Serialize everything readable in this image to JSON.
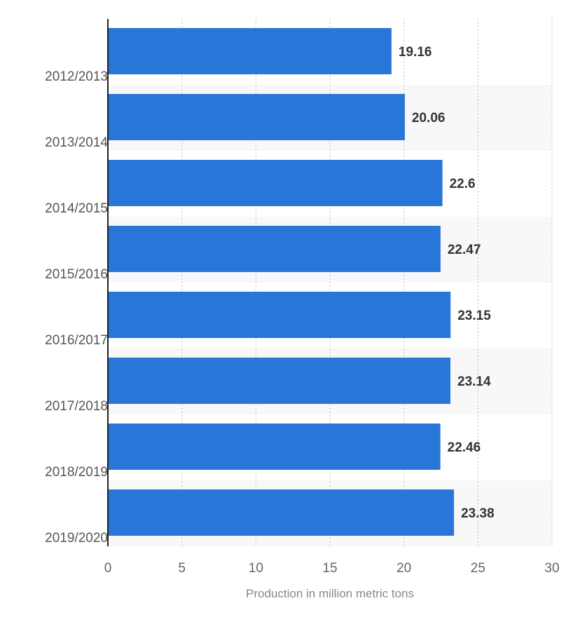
{
  "chart_data": {
    "type": "bar",
    "orientation": "horizontal",
    "categories": [
      "2012/2013",
      "2013/2014",
      "2014/2015",
      "2015/2016",
      "2016/2017",
      "2017/2018",
      "2018/2019",
      "2019/2020"
    ],
    "values": [
      19.16,
      20.06,
      22.6,
      22.47,
      23.15,
      23.14,
      22.46,
      23.38
    ],
    "data_labels": [
      "19.16",
      "20.06",
      "22.6",
      "22.47",
      "23.15",
      "23.14",
      "22.46",
      "23.38"
    ],
    "xlabel": "Production in million metric tons",
    "ylabel": "",
    "xlim": [
      0,
      30
    ],
    "x_ticks": [
      "0",
      "5",
      "10",
      "15",
      "20",
      "25",
      "30"
    ],
    "grid": true,
    "legend": "none",
    "bar_color": "#2776d8",
    "band_color": "#f8f8f8"
  }
}
